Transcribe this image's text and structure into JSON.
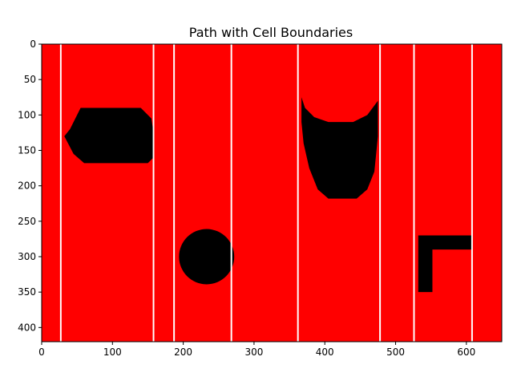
{
  "chart_data": {
    "type": "heatmap",
    "title": "Path with Cell Boundaries",
    "xlabel": "",
    "ylabel": "",
    "xlim": [
      0,
      650
    ],
    "ylim": [
      420,
      0
    ],
    "x_ticks": [
      0,
      100,
      200,
      300,
      400,
      500,
      600
    ],
    "y_ticks": [
      0,
      50,
      100,
      150,
      200,
      250,
      300,
      350,
      400
    ],
    "background_color": "#ff0000",
    "obstacle_color": "#000000",
    "boundary_color": "#ffffff",
    "cell_boundaries_x": [
      27,
      158,
      187,
      268,
      362,
      478,
      526,
      608
    ],
    "obstacles": [
      {
        "name": "hexagon",
        "points": [
          [
            55,
            90
          ],
          [
            140,
            90
          ],
          [
            155,
            105
          ],
          [
            158,
            125
          ],
          [
            158,
            160
          ],
          [
            150,
            168
          ],
          [
            60,
            168
          ],
          [
            45,
            155
          ],
          [
            32,
            130
          ],
          [
            40,
            120
          ]
        ]
      },
      {
        "name": "circle",
        "cx": 233,
        "cy": 300,
        "r": 39
      },
      {
        "name": "bowl",
        "points": [
          [
            367,
            75
          ],
          [
            372,
            90
          ],
          [
            385,
            103
          ],
          [
            405,
            110
          ],
          [
            440,
            110
          ],
          [
            460,
            100
          ],
          [
            475,
            80
          ],
          [
            475,
            130
          ],
          [
            470,
            180
          ],
          [
            460,
            205
          ],
          [
            445,
            218
          ],
          [
            405,
            218
          ],
          [
            390,
            205
          ],
          [
            378,
            175
          ],
          [
            370,
            140
          ],
          [
            367,
            110
          ]
        ]
      },
      {
        "name": "l-shape",
        "points": [
          [
            532,
            270
          ],
          [
            608,
            270
          ],
          [
            608,
            290
          ],
          [
            552,
            290
          ],
          [
            552,
            350
          ],
          [
            532,
            350
          ]
        ]
      }
    ]
  }
}
